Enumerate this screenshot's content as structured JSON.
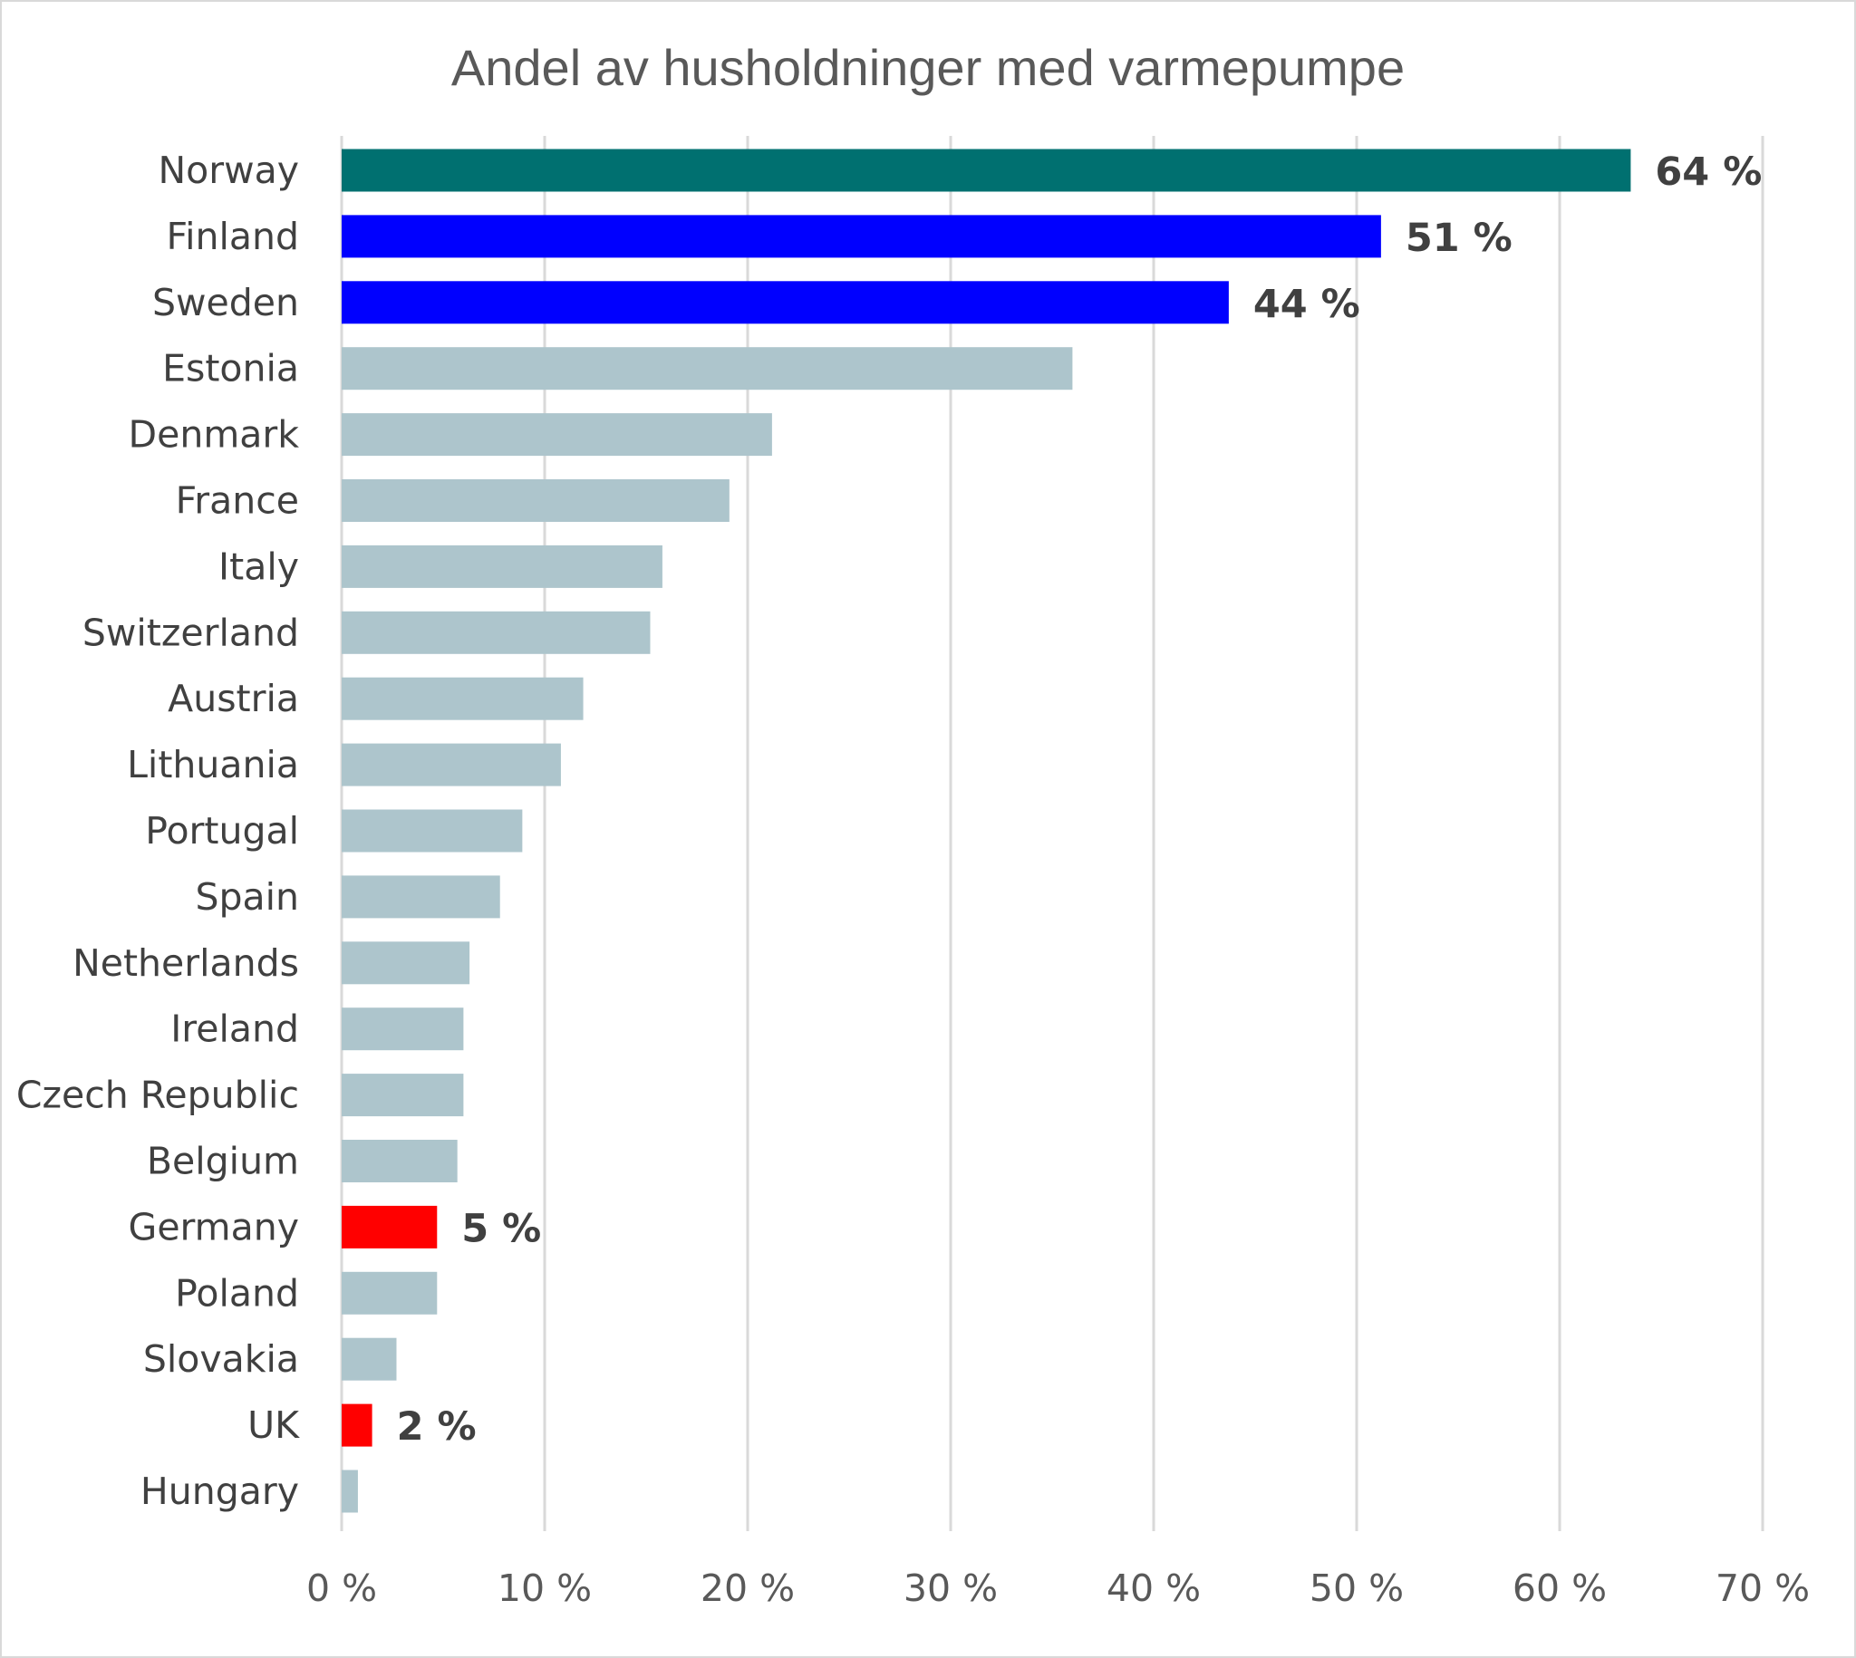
{
  "chart_data": {
    "type": "bar",
    "orientation": "horizontal",
    "title": "Andel av husholdninger med varmepumpe",
    "xlabel": "",
    "ylabel": "",
    "xlim": [
      0,
      70
    ],
    "x_ticks": [
      "0 %",
      "10 %",
      "20 %",
      "30 %",
      "40 %",
      "50 %",
      "60 %",
      "70 %"
    ],
    "grid": true,
    "legend": "none",
    "categories": [
      "Norway",
      "Finland",
      "Sweden",
      "Estonia",
      "Denmark",
      "France",
      "Italy",
      "Switzerland",
      "Austria",
      "Lithuania",
      "Portugal",
      "Spain",
      "Netherlands",
      "Ireland",
      "Czech Republic",
      "Belgium",
      "Germany",
      "Poland",
      "Slovakia",
      "UK",
      "Hungary"
    ],
    "values": [
      63.5,
      51.2,
      43.7,
      36.0,
      21.2,
      19.1,
      15.8,
      15.2,
      11.9,
      10.8,
      8.9,
      7.8,
      6.3,
      6.0,
      6.0,
      5.7,
      4.7,
      4.7,
      2.7,
      1.5,
      0.8
    ],
    "bar_colors": [
      "#007070",
      "#0000ff",
      "#0000ff",
      "#adc5cc",
      "#adc5cc",
      "#adc5cc",
      "#adc5cc",
      "#adc5cc",
      "#adc5cc",
      "#adc5cc",
      "#adc5cc",
      "#adc5cc",
      "#adc5cc",
      "#adc5cc",
      "#adc5cc",
      "#adc5cc",
      "#ff0000",
      "#adc5cc",
      "#adc5cc",
      "#ff0000",
      "#adc5cc"
    ],
    "data_labels": [
      "64 %",
      "51 %",
      "44 %",
      "",
      "",
      "",
      "",
      "",
      "",
      "",
      "",
      "",
      "",
      "",
      "",
      "",
      "5 %",
      "",
      "",
      "2 %",
      ""
    ]
  }
}
